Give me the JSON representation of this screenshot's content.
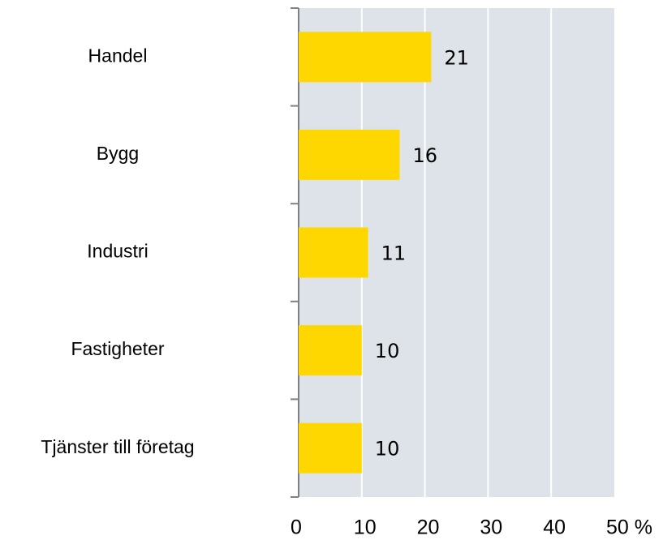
{
  "chart_data": {
    "type": "hbar",
    "categories": [
      "Handel",
      "Bygg",
      "Industri",
      "Fastigheter",
      "Tjänster till företag"
    ],
    "values": [
      21,
      16,
      11,
      10,
      10
    ],
    "color": "#ffd700",
    "xlim": [
      0,
      50
    ],
    "xticks": [
      0,
      10,
      20,
      30,
      40,
      {
        "value": 50,
        "label": "50 %"
      }
    ],
    "grid": true
  }
}
